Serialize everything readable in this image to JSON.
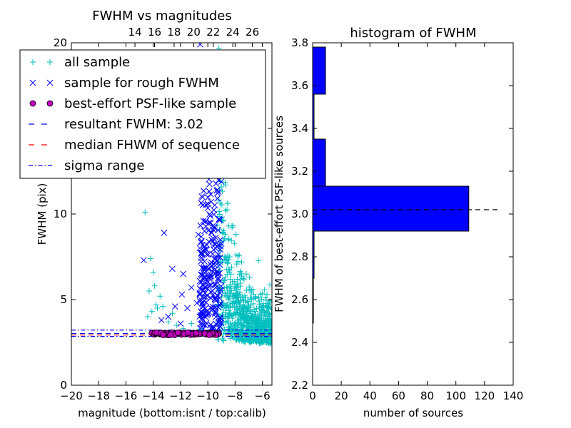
{
  "chart_data": [
    {
      "type": "scatter",
      "title": "FWHM vs magnitudes",
      "xlabel": "magnitude (bottom:isnt / top:calib)",
      "ylabel": "FWHM (pix)",
      "xlim": [
        -20,
        -5.3
      ],
      "ylim": [
        0,
        20
      ],
      "x_ticks": [
        -20,
        -18,
        -16,
        -14,
        -12,
        -10,
        -8,
        -6
      ],
      "x_tick_labels": [
        "−20",
        "−18",
        "−16",
        "−14",
        "−12",
        "−10",
        "−8",
        "−6"
      ],
      "y_ticks": [
        0,
        5,
        10,
        15,
        20
      ],
      "y_tick_labels": [
        "0",
        "5",
        "10",
        "15",
        "20"
      ],
      "top_ticks": [
        14,
        16,
        18,
        20,
        22,
        24,
        26
      ],
      "top_tick_labels": [
        "14",
        "16",
        "18",
        "20",
        "22",
        "24",
        "26"
      ],
      "top_xlim": [
        7.5,
        28.0
      ],
      "grid": false,
      "legend_position": "top-left",
      "legend": [
        {
          "label": "all sample",
          "marker": "plus",
          "color": "#00bfbf"
        },
        {
          "label": "sample for rough FWHM",
          "marker": "x",
          "color": "#0000ff"
        },
        {
          "label": "best-effort PSF-like sample",
          "marker": "circle",
          "color": "#bf00bf"
        },
        {
          "label": "resultant FWHM: 3.02",
          "marker": "dashed",
          "color": "#0000ff"
        },
        {
          "label": "median FHWM of sequence",
          "marker": "dashed",
          "color": "#ff0000"
        },
        {
          "label": "sigma range",
          "marker": "dashdot",
          "color": "#0000ff"
        }
      ],
      "series": [
        {
          "name": "all sample",
          "points": [
            [
              -14.6,
              10.1
            ],
            [
              -14.2,
              7.4
            ],
            [
              -14.0,
              6.6
            ],
            [
              -13.9,
              5.8
            ],
            [
              -14.3,
              5.5
            ],
            [
              -13.8,
              4.7
            ],
            [
              -13.7,
              4.5
            ],
            [
              -14.1,
              4.3
            ],
            [
              -13.3,
              4.6
            ],
            [
              -12.9,
              3.7
            ],
            [
              -14.4,
              4.0
            ],
            [
              -12.3,
              3.5
            ],
            [
              -11.8,
              3.3
            ],
            [
              -11.2,
              3.6
            ],
            [
              -10.5,
              3.3
            ],
            [
              -13.5,
              5.2
            ],
            [
              -12.6,
              4.2
            ]
          ]
        },
        {
          "name": "sample for rough FWHM",
          "points": [
            [
              -14.7,
              7.3
            ],
            [
              -13.2,
              8.9
            ],
            [
              -12.6,
              6.8
            ],
            [
              -11.8,
              6.5
            ],
            [
              -11.2,
              5.7
            ],
            [
              -10.7,
              8.8
            ],
            [
              -12.9,
              4.0
            ],
            [
              -12.0,
              3.6
            ],
            [
              -11.5,
              4.5
            ],
            [
              -10.8,
              4.8
            ],
            [
              -13.4,
              3.8
            ],
            [
              -12.4,
              4.6
            ],
            [
              -11.9,
              5.3
            ],
            [
              -10.4,
              4.2
            ],
            [
              -10.1,
              6.2
            ]
          ]
        },
        {
          "name": "best-effort PSF-like sample",
          "points": [
            [
              -14.1,
              3.05
            ],
            [
              -13.8,
              3.02
            ],
            [
              -13.5,
              3.0
            ],
            [
              -13.2,
              3.04
            ],
            [
              -12.9,
              3.03
            ],
            [
              -12.6,
              3.07
            ],
            [
              -12.3,
              3.01
            ],
            [
              -12.0,
              3.03
            ],
            [
              -11.7,
              3.05
            ],
            [
              -11.4,
              3.02
            ],
            [
              -11.1,
              3.04
            ],
            [
              -10.8,
              3.06
            ],
            [
              -10.5,
              3.01
            ],
            [
              -10.2,
              3.03
            ],
            [
              -9.9,
              3.05
            ],
            [
              -9.6,
              3.02
            ],
            [
              -9.4,
              3.04
            ],
            [
              -9.2,
              3.03
            ]
          ]
        }
      ],
      "hlines": [
        {
          "name": "resultant FWHM: 3.02",
          "y": 3.02,
          "style": "dashed",
          "color": "#0000ff"
        },
        {
          "name": "median FHWM of sequence",
          "y": 2.93,
          "style": "dashed",
          "color": "#ff0000"
        },
        {
          "name": "sigma range upper",
          "y": 3.22,
          "style": "dashdot",
          "color": "#0000ff"
        },
        {
          "name": "sigma range lower",
          "y": 2.85,
          "style": "dashdot",
          "color": "#0000ff"
        }
      ]
    },
    {
      "type": "bar",
      "orientation": "horizontal",
      "title": "histogram of FWHM",
      "xlabel": "number of sources",
      "ylabel": "FWHM of best-effort PSF-like sources",
      "xlim": [
        0,
        140
      ],
      "ylim": [
        2.2,
        3.8
      ],
      "x_ticks": [
        0,
        20,
        40,
        60,
        80,
        100,
        120,
        140
      ],
      "x_tick_labels": [
        "0",
        "20",
        "40",
        "60",
        "80",
        "100",
        "120",
        "140"
      ],
      "y_ticks": [
        2.2,
        2.4,
        2.6,
        2.8,
        3.0,
        3.2,
        3.4,
        3.6,
        3.8
      ],
      "y_tick_labels": [
        "2.2",
        "2.4",
        "2.6",
        "2.8",
        "3.0",
        "3.2",
        "3.4",
        "3.6",
        "3.8"
      ],
      "bins": [
        {
          "y0": 2.49,
          "y1": 2.7,
          "value": 0.3
        },
        {
          "y0": 2.7,
          "y1": 2.92,
          "value": 1
        },
        {
          "y0": 2.92,
          "y1": 3.13,
          "value": 109
        },
        {
          "y0": 3.13,
          "y1": 3.35,
          "value": 9
        },
        {
          "y0": 3.35,
          "y1": 3.56,
          "value": 1
        },
        {
          "y0": 3.56,
          "y1": 3.78,
          "value": 9
        }
      ],
      "bar_color": "#0000ff",
      "hline": {
        "y": 3.02,
        "x_range": [
          0,
          130
        ],
        "style": "dashed",
        "color": "#000000"
      },
      "grid": false
    }
  ]
}
